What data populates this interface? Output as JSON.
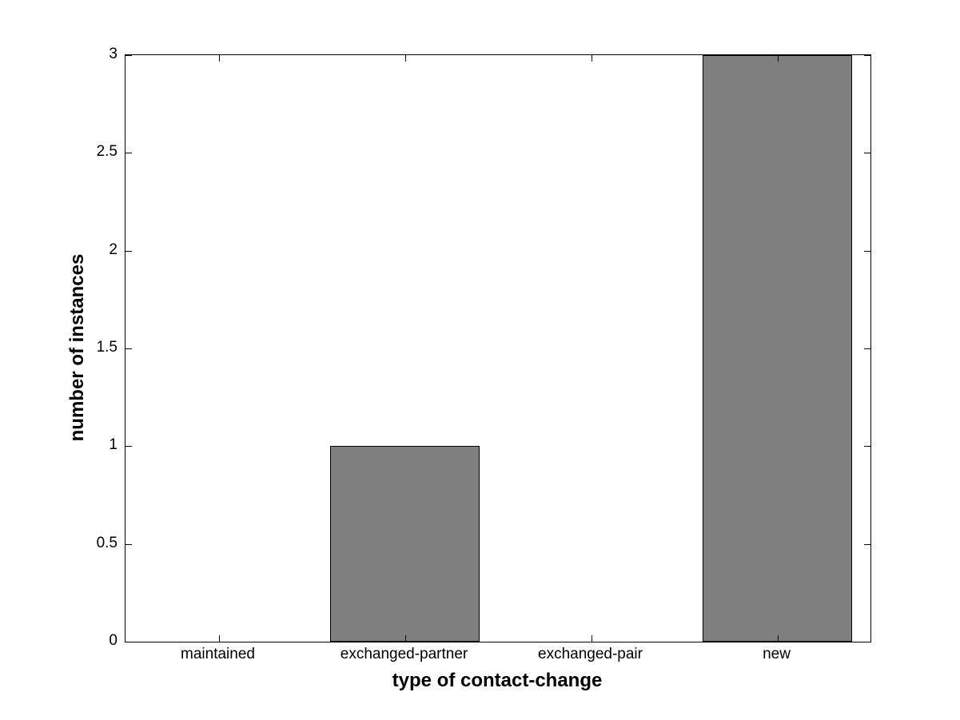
{
  "figure": {
    "background_color": "#ffffff",
    "axis_color": "#000000"
  },
  "chart_data": {
    "type": "bar",
    "categories": [
      "maintained",
      "exchanged-partner",
      "exchanged-pair",
      "new"
    ],
    "values": [
      0,
      1,
      0,
      3
    ],
    "title": "",
    "xlabel": "type of contact-change",
    "ylabel": "number of instances",
    "ylim": [
      0,
      3
    ],
    "xlim": [
      0.5,
      4.5
    ],
    "yticks": [
      0,
      0.5,
      1,
      1.5,
      2,
      2.5,
      3
    ],
    "ytick_labels": [
      "0",
      "0.5",
      "1",
      "1.5",
      "2",
      "2.5",
      "3"
    ],
    "bar_width_fraction": 0.8,
    "bar_color": "#7f7f7f",
    "bar_edge_color": "#000000",
    "grid": false,
    "legend": null
  }
}
